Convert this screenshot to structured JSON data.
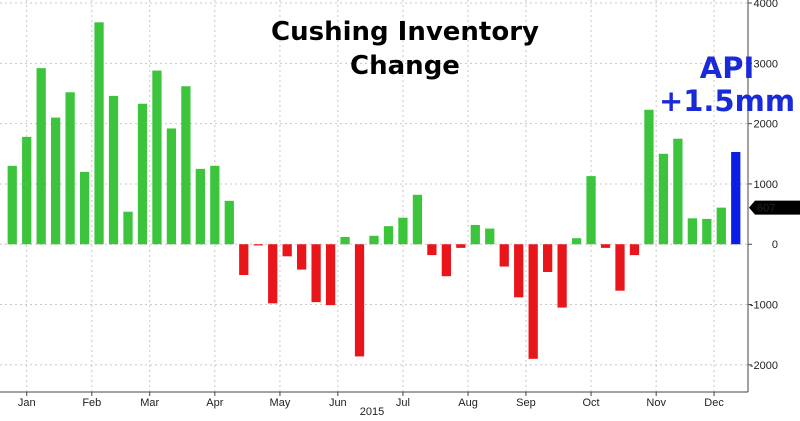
{
  "colors": {
    "positive": "#3cc43c",
    "negative": "#e8151b",
    "latest": "#0a1ee6",
    "annotation": "#1a2ad8",
    "grid": "#c8c8c8",
    "marker": "#000000"
  },
  "chart_data": {
    "type": "bar",
    "title_lines": [
      "Cushing Inventory",
      "Change"
    ],
    "annotation_lines": [
      "API",
      "+1.5mm"
    ],
    "xlabel": "2015",
    "ylabel": "",
    "ylim": [
      -2450,
      4050
    ],
    "grid": true,
    "y_ticks": [
      "4000",
      "3000",
      "2000",
      "1000",
      "0",
      "-1000",
      "-2000"
    ],
    "y_tick_values": [
      4000,
      3000,
      2000,
      1000,
      0,
      -1000,
      -2000
    ],
    "last_value_marker": "607",
    "last_value": 607,
    "x_tick_labels": [
      "Jan",
      "Feb",
      "Mar",
      "Apr",
      "May",
      "Jun",
      "Jul",
      "Aug",
      "Sep",
      "Oct",
      "Nov",
      "Dec"
    ],
    "x_tick_label_weeks": [
      1,
      5.5,
      9.5,
      14,
      18.5,
      22.5,
      27,
      31.5,
      35.5,
      40,
      44.5,
      48.5
    ],
    "series": [
      {
        "values": [
          1300,
          1780,
          2920,
          2100,
          2520,
          1200,
          3680,
          2460,
          540,
          2330,
          2880,
          1920,
          2620,
          1250,
          1300,
          720,
          -510,
          -20,
          -980,
          -200,
          -420,
          -960,
          -1010,
          120,
          -1860,
          140,
          300,
          440,
          820,
          -180,
          -530,
          -60,
          320,
          260,
          -370,
          -880,
          -1900,
          -460,
          -1050,
          100,
          1130,
          -60,
          -770,
          -180,
          2230,
          1500,
          1750,
          430,
          420,
          607
        ]
      },
      {
        "values": [
          1530
        ]
      }
    ]
  }
}
